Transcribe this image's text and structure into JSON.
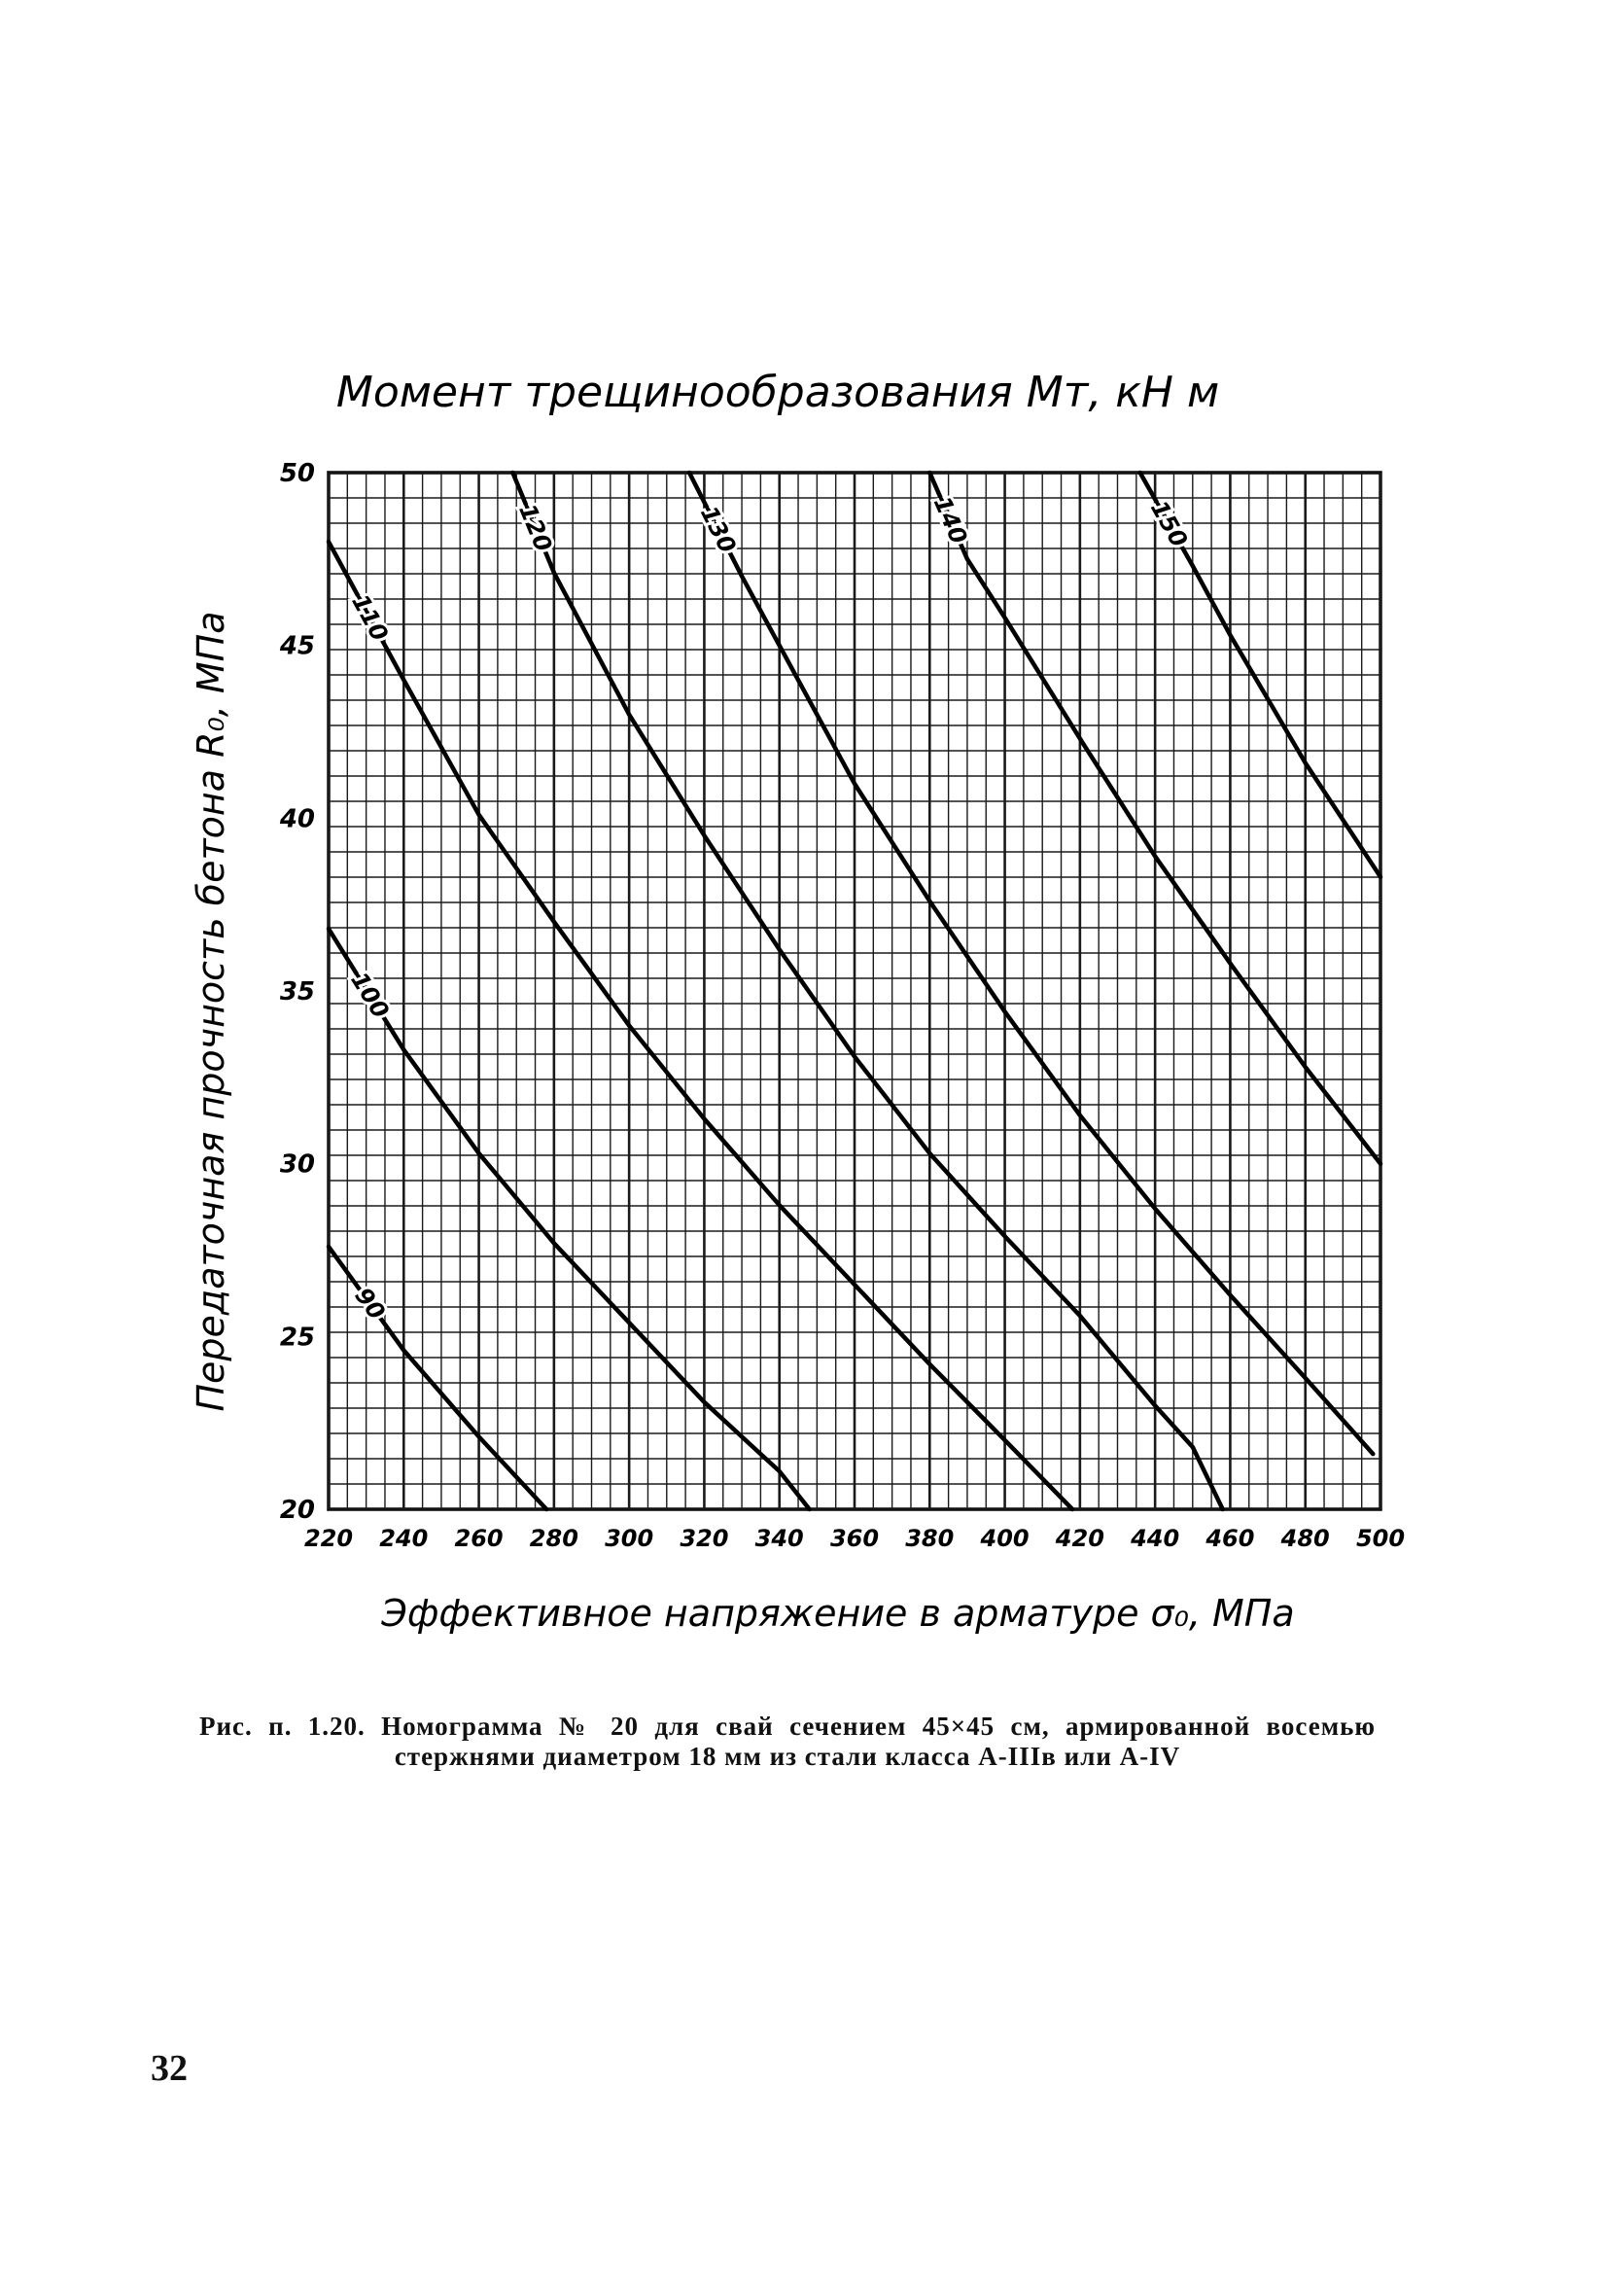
{
  "chart_data": {
    "type": "line",
    "title": "Момент трещинообразования Мт, кН м",
    "xlabel": "Эффективное напряжение в арматуре σ₀, МПа",
    "ylabel": "Передаточная прочность бетона R₀, МПа",
    "xlim": [
      220,
      500
    ],
    "ylim": [
      20,
      50
    ],
    "grid": true,
    "x_ticks": [
      "220",
      "240",
      "260",
      "280",
      "300",
      "320",
      "340",
      "360",
      "380",
      "400",
      "420",
      "440",
      "460",
      "480",
      "500"
    ],
    "y_ticks": [
      "20",
      "25",
      "30",
      "35",
      "40",
      "45",
      "50"
    ],
    "series": [
      {
        "name": "90",
        "points": [
          [
            220,
            27.6
          ],
          [
            240,
            24.6
          ],
          [
            260,
            22.1
          ],
          [
            278,
            20
          ]
        ]
      },
      {
        "name": "100",
        "points": [
          [
            220,
            36.8
          ],
          [
            240,
            33.3
          ],
          [
            260,
            30.3
          ],
          [
            280,
            27.7
          ],
          [
            300,
            25.4
          ],
          [
            320,
            23.1
          ],
          [
            340,
            21.1
          ],
          [
            348,
            20
          ]
        ]
      },
      {
        "name": "110",
        "points": [
          [
            220,
            48.0
          ],
          [
            240,
            44.0
          ],
          [
            260,
            40.1
          ],
          [
            280,
            37.0
          ],
          [
            300,
            34.0
          ],
          [
            320,
            31.3
          ],
          [
            340,
            28.8
          ],
          [
            360,
            26.5
          ],
          [
            380,
            24.2
          ],
          [
            400,
            22.0
          ],
          [
            418,
            20
          ]
        ]
      },
      {
        "name": "120",
        "points": [
          [
            269,
            50
          ],
          [
            280,
            47.1
          ],
          [
            300,
            43.0
          ],
          [
            320,
            39.5
          ],
          [
            340,
            36.2
          ],
          [
            360,
            33.1
          ],
          [
            380,
            30.3
          ],
          [
            400,
            27.9
          ],
          [
            420,
            25.6
          ],
          [
            440,
            23.0
          ],
          [
            450,
            21.8
          ],
          [
            458,
            20
          ]
        ]
      },
      {
        "name": "130",
        "points": [
          [
            316,
            50
          ],
          [
            330,
            47.0
          ],
          [
            340,
            45.0
          ],
          [
            360,
            41.0
          ],
          [
            380,
            37.6
          ],
          [
            400,
            34.4
          ],
          [
            420,
            31.4
          ],
          [
            440,
            28.7
          ],
          [
            460,
            26.2
          ],
          [
            480,
            23.8
          ],
          [
            498,
            21.6
          ]
        ]
      },
      {
        "name": "140",
        "points": [
          [
            380,
            50
          ],
          [
            390,
            47.5
          ],
          [
            400,
            45.8
          ],
          [
            420,
            42.3
          ],
          [
            440,
            38.9
          ],
          [
            460,
            35.8
          ],
          [
            480,
            32.8
          ],
          [
            500,
            30.0
          ]
        ]
      },
      {
        "name": "150",
        "points": [
          [
            436,
            50
          ],
          [
            450,
            47.3
          ],
          [
            460,
            45.3
          ],
          [
            480,
            41.6
          ],
          [
            500,
            38.3
          ]
        ]
      }
    ]
  },
  "caption": {
    "text": "Рис. п. 1.20. Номограмма № 20 для свай сечением 45×45 см, армированной восемью стержнями диаметром 18 мм из стали класса А-IIIв или А-IV"
  },
  "page_number": "32"
}
